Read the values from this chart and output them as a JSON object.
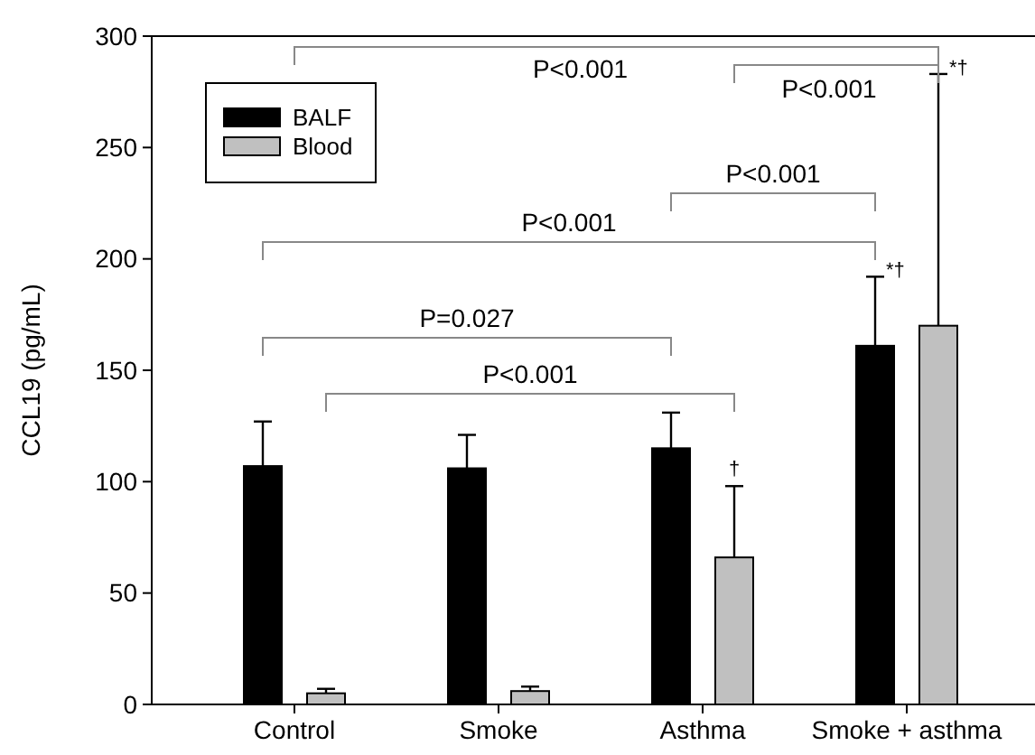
{
  "chart_data": {
    "type": "bar",
    "ylabel": "CCL19 (pg/mL)",
    "categories": [
      "Control",
      "Smoke",
      "Asthma",
      "Smoke + asthma"
    ],
    "series": [
      {
        "name": "BALF",
        "color": "#000000",
        "values": [
          107,
          106,
          115,
          161
        ],
        "errors": [
          [
            107,
            127
          ],
          [
            106,
            121
          ],
          [
            115,
            131
          ],
          [
            161,
            192
          ]
        ]
      },
      {
        "name": "Blood",
        "color": "#c0c0c0",
        "values": [
          5,
          6,
          66,
          170
        ],
        "errors": [
          [
            5,
            7
          ],
          [
            6,
            8
          ],
          [
            66,
            98
          ],
          [
            170,
            283
          ]
        ]
      }
    ],
    "ylim": [
      0,
      300
    ],
    "yticks": [
      0,
      50,
      100,
      150,
      200,
      250,
      300
    ],
    "legend": "top left",
    "grid": false,
    "annotations": [
      "P<0.001",
      "P<0.001",
      "P<0.001",
      "P<0.001",
      "P=0.027",
      "P<0.001",
      "*†",
      "*†",
      "†"
    ]
  }
}
